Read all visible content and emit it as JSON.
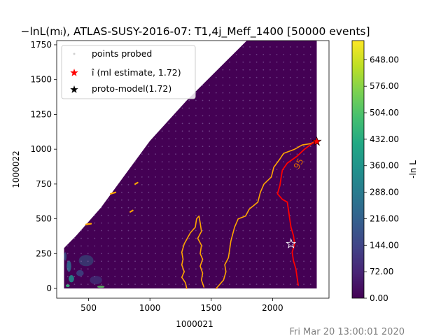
{
  "chart_data": {
    "type": "heatmap",
    "title": "−lnL(mᵢ), ATLAS-SUSY-2016-07: T1,4j_Meff_1400 [50000 events]",
    "xlabel": "1000021",
    "ylabel": "1000022",
    "colorbar_label": "-ln L",
    "xlim": [
      240,
      2460
    ],
    "ylim": [
      -70,
      1780
    ],
    "x_ticks": [
      500,
      1000,
      1500,
      2000
    ],
    "y_ticks": [
      0,
      250,
      500,
      750,
      1000,
      1250,
      1500,
      1750
    ],
    "colorbar_range": [
      0,
      700
    ],
    "colorbar_ticks": [
      "0.00",
      "72.00",
      "144.00",
      "216.00",
      "288.00",
      "360.00",
      "432.00",
      "504.00",
      "576.00",
      "648.00"
    ],
    "colorbar_tick_values": [
      0,
      72,
      144,
      216,
      288,
      360,
      432,
      504,
      576,
      648
    ],
    "colormap": "viridis",
    "grid": false,
    "legend_placement": "upper-left",
    "legend": [
      {
        "label": "points probed",
        "marker": "dot",
        "color": "#d0d0d0"
      },
      {
        "label": "î (ml estimate, 1.72)",
        "marker": "star",
        "color": "#ff0000"
      },
      {
        "label": "proto-model(1.72)",
        "marker": "star",
        "color": "#000000"
      }
    ],
    "ml_estimate": {
      "x": 2360,
      "y": 1055
    },
    "proto_model": {
      "x": 2150,
      "y": 320
    },
    "contour_label": "95",
    "contour_label_at": {
      "x": 2060,
      "y": 920
    },
    "contour_95_colour": "#ffa500",
    "contour_ml_colour": "#ff0000",
    "contour_95": [
      [
        [
          1300,
          0
        ],
        [
          1290,
          40
        ],
        [
          1260,
          80
        ],
        [
          1280,
          120
        ],
        [
          1260,
          170
        ],
        [
          1270,
          210
        ],
        [
          1260,
          260
        ],
        [
          1280,
          320
        ],
        [
          1330,
          400
        ],
        [
          1370,
          440
        ],
        [
          1380,
          500
        ],
        [
          1400,
          520
        ],
        [
          1410,
          470
        ],
        [
          1420,
          410
        ],
        [
          1390,
          360
        ],
        [
          1420,
          310
        ],
        [
          1410,
          250
        ],
        [
          1430,
          210
        ],
        [
          1410,
          160
        ],
        [
          1430,
          110
        ],
        [
          1420,
          60
        ],
        [
          1440,
          10
        ]
      ],
      [
        [
          1540,
          0
        ],
        [
          1600,
          60
        ],
        [
          1620,
          120
        ],
        [
          1610,
          170
        ],
        [
          1640,
          220
        ],
        [
          1650,
          280
        ],
        [
          1660,
          340
        ],
        [
          1690,
          440
        ],
        [
          1720,
          500
        ],
        [
          1780,
          520
        ],
        [
          1810,
          570
        ],
        [
          1880,
          620
        ],
        [
          1900,
          690
        ],
        [
          1930,
          750
        ],
        [
          1990,
          800
        ],
        [
          2010,
          870
        ],
        [
          2060,
          930
        ],
        [
          2090,
          970
        ],
        [
          2180,
          1000
        ],
        [
          2240,
          1030
        ],
        [
          2310,
          1040
        ],
        [
          2360,
          1060
        ]
      ],
      [
        [
          680,
          680
        ],
        [
          720,
          690
        ]
      ],
      [
        [
          860,
          560
        ],
        [
          840,
          550
        ]
      ],
      [
        [
          900,
          760
        ],
        [
          880,
          750
        ]
      ],
      [
        [
          480,
          460
        ],
        [
          520,
          465
        ]
      ]
    ],
    "contour_ml": [
      [
        [
          2360,
          1060
        ],
        [
          2320,
          1040
        ],
        [
          2260,
          1000
        ],
        [
          2200,
          950
        ],
        [
          2120,
          900
        ],
        [
          2080,
          850
        ],
        [
          2070,
          800
        ],
        [
          2060,
          740
        ],
        [
          2040,
          680
        ],
        [
          2080,
          640
        ],
        [
          2120,
          620
        ],
        [
          2130,
          560
        ],
        [
          2140,
          500
        ],
        [
          2150,
          440
        ],
        [
          2170,
          380
        ],
        [
          2180,
          320
        ],
        [
          2160,
          260
        ],
        [
          2170,
          200
        ],
        [
          2190,
          140
        ],
        [
          2200,
          80
        ],
        [
          2210,
          20
        ]
      ]
    ]
  },
  "timestamp": "Fri Mar 20 13:00:01 2020",
  "colors": {
    "frame": "#000000",
    "plot_bg": "#ffffff",
    "field": "#440154"
  }
}
